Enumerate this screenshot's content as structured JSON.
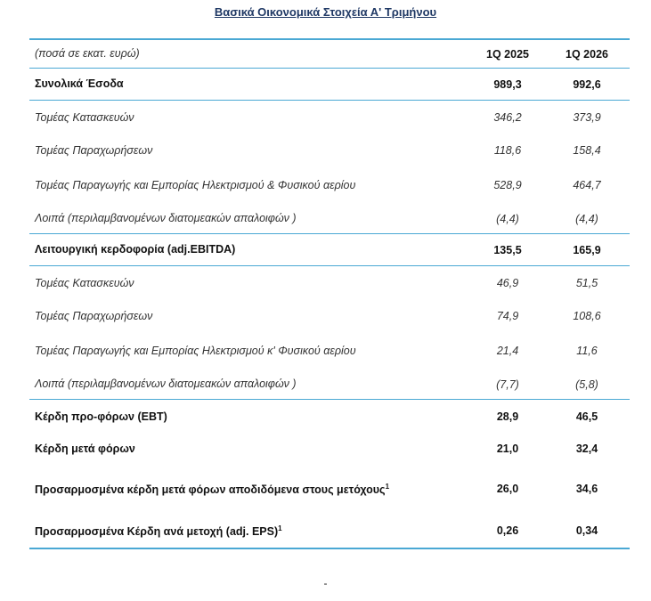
{
  "title": "Βασικά Οικονομικά Στοιχεία Α' Τριμήνου",
  "header": {
    "label": "(ποσά σε εκατ. ευρώ)",
    "col1": "1Q 2025",
    "col2": "1Q 2026"
  },
  "revenue": {
    "label": "Συνολικά Έσοδα",
    "v1": "989,3",
    "v2": "992,6",
    "rows": [
      {
        "label": "Τομέας Κατασκευών",
        "v1": "346,2",
        "v2": "373,9"
      },
      {
        "label": "Τομέας Παραχωρήσεων",
        "v1": "118,6",
        "v2": "158,4"
      },
      {
        "label": "Τομέας Παραγωγής και Εμπορίας Ηλεκτρισμού & Φυσικού αερίου",
        "v1": "528,9",
        "v2": "464,7"
      },
      {
        "label": "Λοιπά (περιλαμβανομένων διατομεακών απαλοιφών )",
        "v1": "(4,4)",
        "v2": "(4,4)"
      }
    ]
  },
  "ebitda": {
    "label": "Λειτουργική κερδοφορία (adj.EBITDA)",
    "v1": "135,5",
    "v2": "165,9",
    "rows": [
      {
        "label": "Τομέας Κατασκευών",
        "v1": "46,9",
        "v2": "51,5"
      },
      {
        "label": "Τομέας Παραχωρήσεων",
        "v1": "74,9",
        "v2": "108,6"
      },
      {
        "label": "Τομέας Παραγωγής και Εμπορίας Ηλεκτρισμού κ' Φυσικού αερίου",
        "v1": "21,4",
        "v2": "11,6"
      },
      {
        "label": "Λοιπά (περιλαμβανομένων διατομεακών απαλοιφών )",
        "v1": "(7,7)",
        "v2": "(5,8)"
      }
    ]
  },
  "profits": [
    {
      "label": "Κέρδη προ-φόρων (EBT)",
      "sup": "",
      "v1": "28,9",
      "v2": "46,5"
    },
    {
      "label": "Κέρδη μετά φόρων",
      "sup": "",
      "v1": "21,0",
      "v2": "32,4"
    },
    {
      "label": "Προσαρμοσμένα κέρδη μετά φόρων αποδιδόμενα στους μετόχους",
      "sup": "1",
      "v1": "26,0",
      "v2": "34,6"
    },
    {
      "label": "Προσαρμοσμένα Κέρδη ανά μετοχή (adj. EPS)",
      "sup": "1",
      "v1": "0,26",
      "v2": "0,34"
    }
  ],
  "footer": "-"
}
